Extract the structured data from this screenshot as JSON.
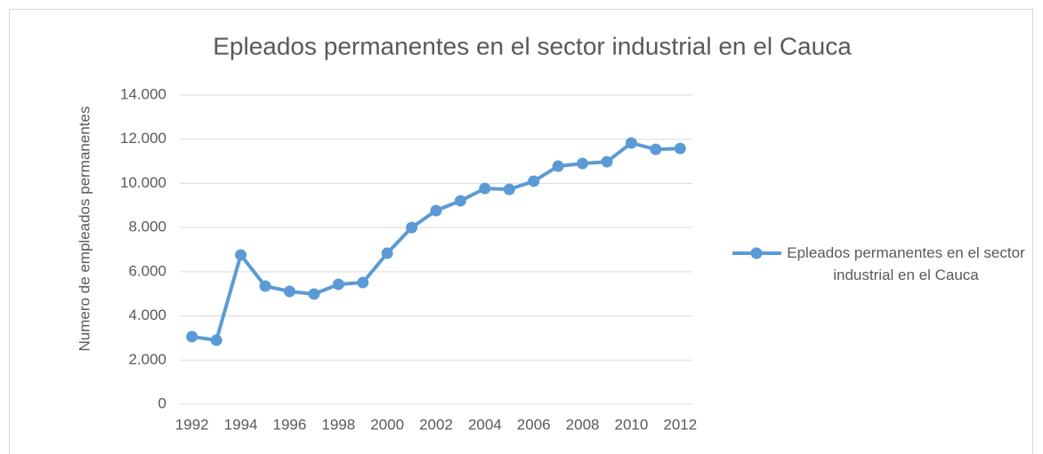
{
  "chart_data": {
    "type": "line",
    "title": "Epleados permanentes en el sector industrial en el Cauca",
    "y_label": "Numero de empleados permanentes",
    "categories": [
      "1992",
      null,
      "1994",
      null,
      "1996",
      null,
      "1998",
      null,
      "2000",
      null,
      "2002",
      null,
      "2004",
      null,
      "2006",
      null,
      "2008",
      null,
      "2010",
      null,
      "2012"
    ],
    "series": [
      {
        "name": "Epleados permanentes en el sector industrial en el Cauca",
        "color": "#5b9bd5",
        "values": [
          3060,
          2900,
          6760,
          5350,
          5110,
          4990,
          5430,
          5510,
          6840,
          8000,
          8770,
          9210,
          9770,
          9730,
          10100,
          10780,
          10900,
          10980,
          11830,
          11540,
          11580
        ]
      }
    ],
    "ylim": [
      0,
      14000
    ],
    "yticks": [
      0,
      {
        "value": 2000,
        "label": "2.000"
      },
      {
        "value": 4000,
        "label": "4.000"
      },
      {
        "value": 6000,
        "label": "6.000"
      },
      {
        "value": 8000,
        "label": "8.000"
      },
      {
        "value": 10000,
        "label": "10.000"
      },
      {
        "value": 12000,
        "label": "12.000"
      },
      {
        "value": 14000,
        "label": "14.000"
      }
    ],
    "grid": true,
    "legend": "right"
  }
}
